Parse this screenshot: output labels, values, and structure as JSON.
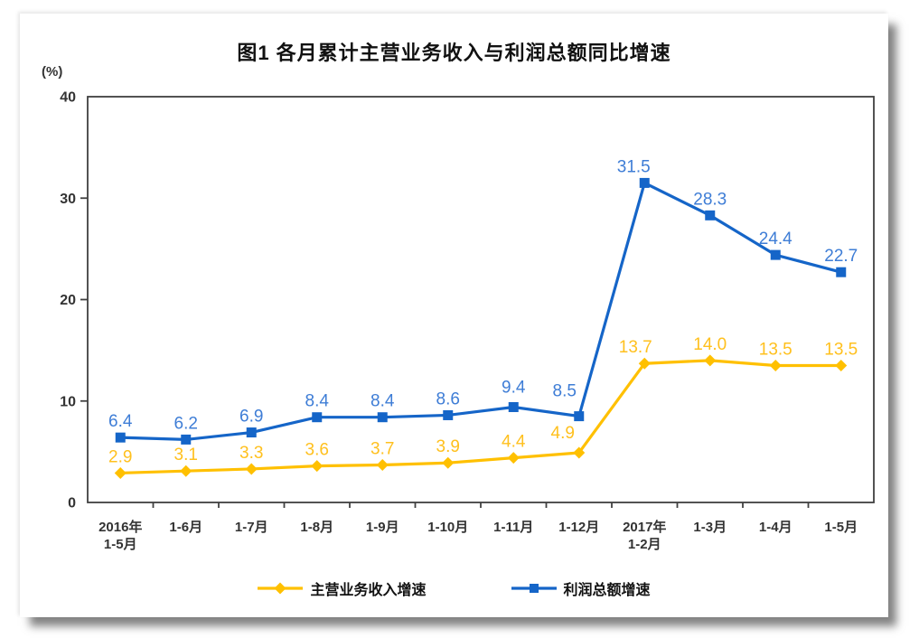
{
  "chart_data": {
    "type": "line",
    "title": "图1 各月累计主营业务收入与利润总额同比增速",
    "unit_label": "(%)",
    "xlabel": "",
    "ylabel": "(%)",
    "ylim": [
      0,
      40
    ],
    "yticks": [
      0,
      10,
      20,
      30,
      40
    ],
    "grid": false,
    "legend_position": "bottom-center",
    "categories": [
      "2016年\n1-5月",
      "1-6月",
      "1-7月",
      "1-8月",
      "1-9月",
      "1-10月",
      "1-11月",
      "1-12月",
      "2017年\n1-2月",
      "1-3月",
      "1-4月",
      "1-5月"
    ],
    "series": [
      {
        "name": "主营业务收入增速",
        "marker": "diamond",
        "color": "#FFC000",
        "label_color": "#FFC01E",
        "values": [
          2.9,
          3.1,
          3.3,
          3.6,
          3.7,
          3.9,
          4.4,
          4.9,
          13.7,
          14.0,
          13.5,
          13.5
        ]
      },
      {
        "name": "利润总额增速",
        "marker": "square",
        "color": "#1565C8",
        "label_color": "#3E7DD6",
        "values": [
          6.4,
          6.2,
          6.9,
          8.4,
          8.4,
          8.6,
          9.4,
          8.5,
          31.5,
          28.3,
          24.4,
          22.7
        ]
      }
    ],
    "colors": {
      "axis_text": "#333333",
      "plot_border": "#404040",
      "background": "#ffffff"
    }
  }
}
